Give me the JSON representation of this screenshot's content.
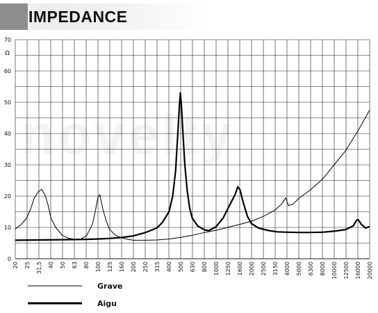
{
  "header": {
    "title": "IMPEDANCE"
  },
  "watermark": "novelty",
  "chart_data": {
    "type": "line",
    "title": "IMPEDANCE",
    "ylabel": "Ω",
    "xlabel": "",
    "xscale": "log",
    "ylim": [
      0,
      70
    ],
    "yticks": [
      0,
      10,
      20,
      30,
      40,
      50,
      60,
      70
    ],
    "xticks": [
      20,
      25,
      31.5,
      40,
      50,
      63,
      80,
      100,
      125,
      160,
      200,
      250,
      315,
      400,
      500,
      630,
      800,
      1000,
      1250,
      1600,
      2000,
      2500,
      3150,
      4000,
      5000,
      6300,
      8000,
      10000,
      12500,
      16000,
      20000
    ],
    "xtick_labels": [
      "20",
      "25",
      "31,5",
      "40",
      "50",
      "63",
      "80",
      "100",
      "125",
      "160",
      "200",
      "250",
      "315",
      "400",
      "500",
      "630",
      "800",
      "1000",
      "1250",
      "1600",
      "2000",
      "2500",
      "3150",
      "4000",
      "5000",
      "6300",
      "8000",
      "10000",
      "12500",
      "16000",
      "20000"
    ],
    "grid": true,
    "legend_position": "bottom-left",
    "series": [
      {
        "name": "Grave",
        "style": "thin",
        "points": [
          [
            20,
            9.5
          ],
          [
            22.5,
            11
          ],
          [
            25,
            13
          ],
          [
            27,
            16
          ],
          [
            29,
            19.5
          ],
          [
            31.5,
            21.5
          ],
          [
            33.5,
            22.2
          ],
          [
            36,
            20
          ],
          [
            38,
            17
          ],
          [
            40,
            13
          ],
          [
            44,
            10
          ],
          [
            50,
            7.5
          ],
          [
            56,
            6.6
          ],
          [
            63,
            6.2
          ],
          [
            71,
            6.2
          ],
          [
            80,
            7.3
          ],
          [
            90,
            11
          ],
          [
            95,
            15
          ],
          [
            100,
            19.5
          ],
          [
            104,
            20.5
          ],
          [
            110,
            16
          ],
          [
            118,
            12
          ],
          [
            125,
            9.5
          ],
          [
            140,
            7.6
          ],
          [
            160,
            6.6
          ],
          [
            180,
            6.2
          ],
          [
            200,
            5.9
          ],
          [
            250,
            5.9
          ],
          [
            315,
            6.0
          ],
          [
            400,
            6.3
          ],
          [
            500,
            6.8
          ],
          [
            630,
            7.5
          ],
          [
            800,
            8.4
          ],
          [
            1000,
            9.1
          ],
          [
            1250,
            10.0
          ],
          [
            1600,
            11.0
          ],
          [
            2000,
            12.0
          ],
          [
            2500,
            13.5
          ],
          [
            3150,
            15.5
          ],
          [
            3600,
            17.5
          ],
          [
            3900,
            19.5
          ],
          [
            4100,
            17.0
          ],
          [
            4500,
            17.5
          ],
          [
            5000,
            19.2
          ],
          [
            6300,
            22.0
          ],
          [
            8000,
            25.5
          ],
          [
            10000,
            30.0
          ],
          [
            12500,
            34.5
          ],
          [
            16000,
            41.0
          ],
          [
            20000,
            47.5
          ]
        ]
      },
      {
        "name": "Aigu",
        "style": "bold",
        "points": [
          [
            20,
            5.9
          ],
          [
            31.5,
            6.0
          ],
          [
            50,
            6.1
          ],
          [
            80,
            6.2
          ],
          [
            100,
            6.3
          ],
          [
            125,
            6.5
          ],
          [
            160,
            6.8
          ],
          [
            200,
            7.3
          ],
          [
            250,
            8.3
          ],
          [
            315,
            9.8
          ],
          [
            350,
            11.5
          ],
          [
            400,
            15
          ],
          [
            430,
            20
          ],
          [
            455,
            28
          ],
          [
            475,
            40
          ],
          [
            490,
            49
          ],
          [
            500,
            53
          ],
          [
            510,
            49
          ],
          [
            525,
            40
          ],
          [
            545,
            30
          ],
          [
            570,
            22
          ],
          [
            600,
            16
          ],
          [
            630,
            13
          ],
          [
            700,
            10.5
          ],
          [
            800,
            9.2
          ],
          [
            870,
            9.0
          ],
          [
            1000,
            10.2
          ],
          [
            1150,
            13
          ],
          [
            1300,
            17
          ],
          [
            1450,
            20.5
          ],
          [
            1530,
            23
          ],
          [
            1600,
            22
          ],
          [
            1700,
            18
          ],
          [
            1850,
            13.5
          ],
          [
            2000,
            11.2
          ],
          [
            2300,
            9.8
          ],
          [
            2800,
            9.0
          ],
          [
            3300,
            8.6
          ],
          [
            4000,
            8.5
          ],
          [
            5000,
            8.4
          ],
          [
            6300,
            8.4
          ],
          [
            8000,
            8.5
          ],
          [
            10000,
            8.8
          ],
          [
            12500,
            9.3
          ],
          [
            14500,
            10.5
          ],
          [
            15500,
            12.3
          ],
          [
            16000,
            12.5
          ],
          [
            17000,
            11
          ],
          [
            18500,
            9.8
          ],
          [
            20000,
            10.3
          ]
        ]
      }
    ]
  }
}
